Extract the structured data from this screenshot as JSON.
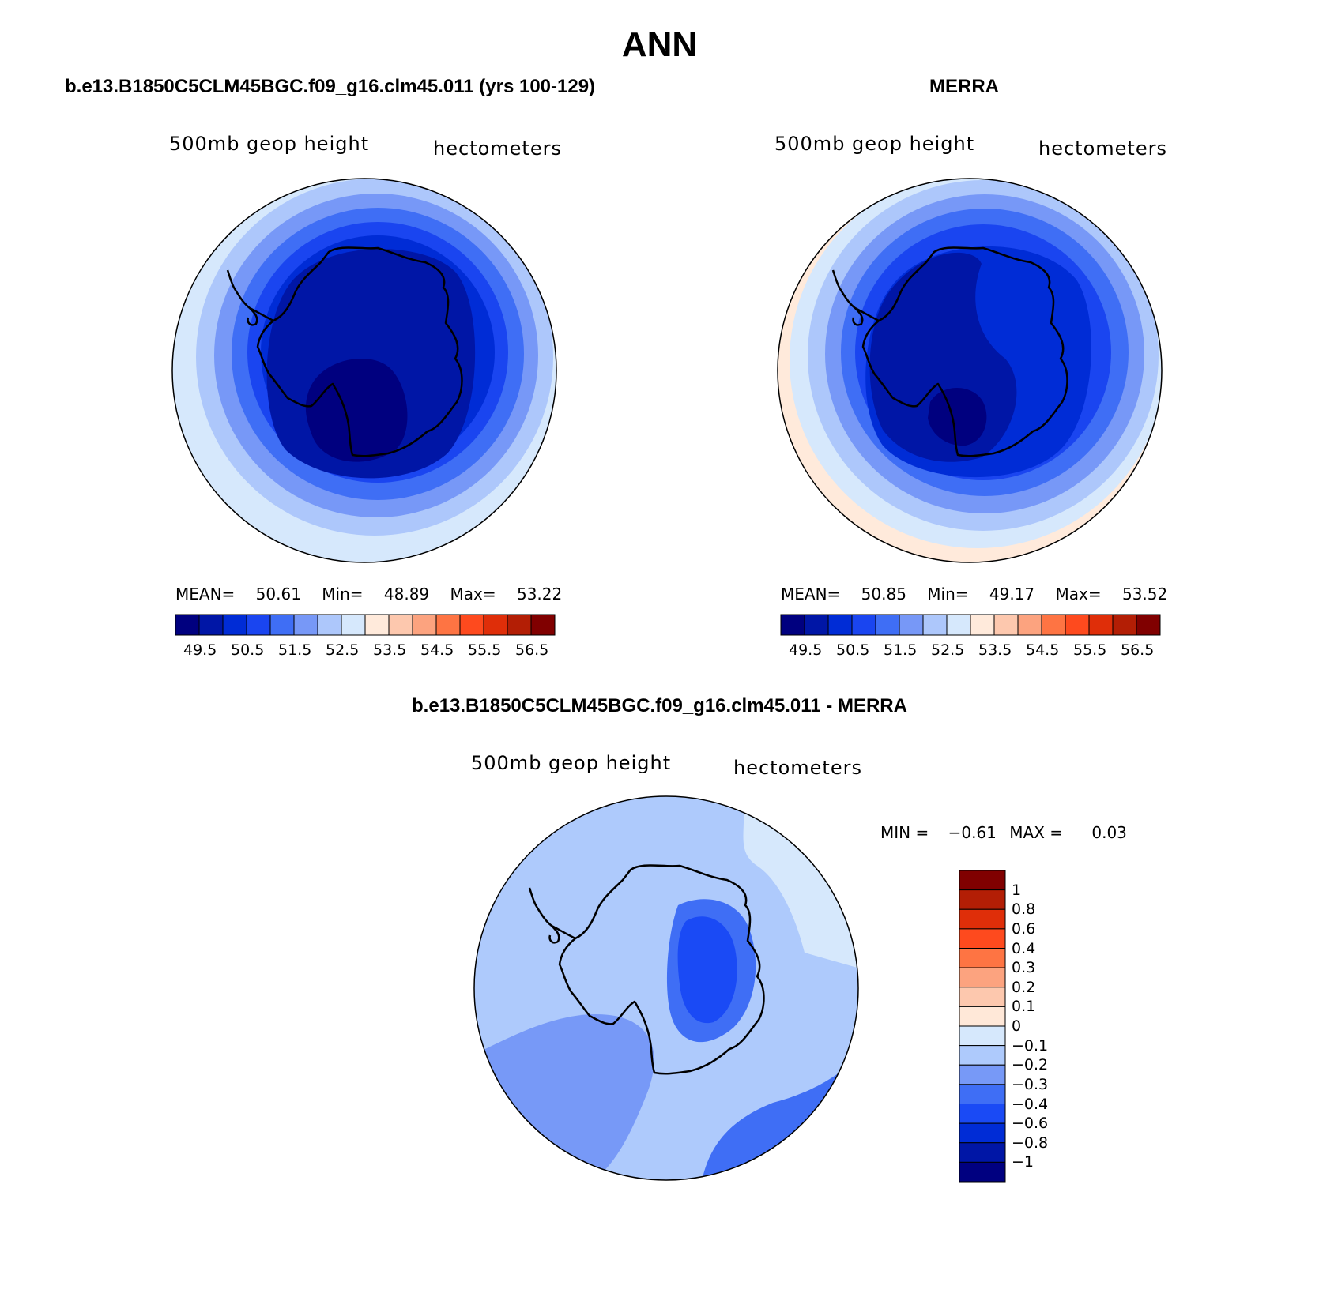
{
  "figure": {
    "title": "ANN"
  },
  "panels": [
    {
      "title": "b.e13.B1850C5CLM45BGC.f09_g16.clm45.011 (yrs 100-129)",
      "left_label": "500mb geop height",
      "right_label": "hectometers",
      "stats": {
        "mean_label": "MEAN=",
        "mean": "50.61",
        "min_label": "Min=",
        "min": "48.89",
        "max_label": "Max=",
        "max": "53.22"
      }
    },
    {
      "title": "MERRA",
      "left_label": "500mb geop height",
      "right_label": "hectometers",
      "stats": {
        "mean_label": "MEAN=",
        "mean": "50.85",
        "min_label": "Min=",
        "min": "49.17",
        "max_label": "Max=",
        "max": "53.52"
      }
    },
    {
      "title": "b.e13.B1850C5CLM45BGC.f09_g16.clm45.011 - MERRA",
      "left_label": "500mb geop height",
      "right_label": "hectometers",
      "stats": {
        "min_label": "MIN =",
        "min": "−0.61",
        "max_label": "MAX =",
        "max": "0.03"
      }
    }
  ],
  "colorbar_field": {
    "colors": [
      "#00007f",
      "#0016a6",
      "#002cd6",
      "#1a45f0",
      "#3f6ef5",
      "#7798f7",
      "#adc7fb",
      "#d6e8fc",
      "#ffeadb",
      "#fdc8ae",
      "#fca37f",
      "#fe7443",
      "#fe4a1e",
      "#df2e09",
      "#b31e05",
      "#800000"
    ],
    "labels": [
      "49.5",
      "50.5",
      "51.5",
      "52.5",
      "53.5",
      "54.5",
      "55.5",
      "56.5"
    ]
  },
  "colorbar_diff": {
    "colors": [
      "#000080",
      "#0016a6",
      "#002cd6",
      "#1a4af5",
      "#3f6ef5",
      "#7799f7",
      "#aecafc",
      "#d6e8fc",
      "#ffe8d8",
      "#fdc8ae",
      "#fca37f",
      "#fe7443",
      "#fe4a1e",
      "#df2e09",
      "#b31e05",
      "#800000"
    ],
    "labels": [
      "1",
      "0.8",
      "0.6",
      "0.4",
      "0.3",
      "0.2",
      "0.1",
      "0",
      "−0.1",
      "−0.2",
      "−0.3",
      "−0.4",
      "−0.6",
      "−0.8",
      "−1"
    ]
  },
  "map_colors": {
    "model": [
      "#d6e8fc",
      "#adc7fb",
      "#7798f7",
      "#3f6ef5",
      "#1a45f0",
      "#002cd6",
      "#0016a6",
      "#00007f"
    ],
    "obs": [
      "#ffeadb",
      "#d6e8fc",
      "#adc7fb",
      "#7798f7",
      "#3f6ef5",
      "#1a45f0",
      "#002cd6",
      "#0016a6",
      "#00007f"
    ],
    "diff": [
      "#aecafc",
      "#d6e8fc",
      "#7799f7",
      "#3f6ef5",
      "#1a4af5"
    ]
  }
}
